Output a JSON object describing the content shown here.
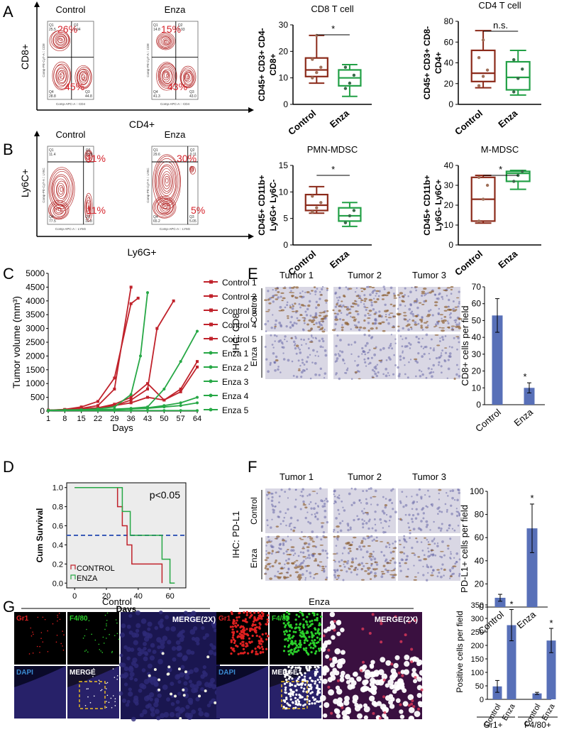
{
  "panel_labels": [
    "A",
    "B",
    "C",
    "D",
    "E",
    "F",
    "G"
  ],
  "panelA": {
    "flow": [
      {
        "title": "Control",
        "q1": "Q1",
        "q1v": "25.5",
        "q2": "Q2",
        "q2v": "0.94",
        "q3": "Q3",
        "q3v": "44.8",
        "q4": "Q4",
        "q4v": "28.8",
        "top_pct": "26%",
        "bot_pct": "45%",
        "xaxis": "Comp-APC-A :: CD4",
        "yaxis": "Comp-PE-Cy7-A :: CD8"
      },
      {
        "title": "Enza",
        "q1": "Q1",
        "q1v": "14.8",
        "q2": "Q2",
        "q2v": "0.93",
        "q3": "Q3",
        "q3v": "43.0",
        "q4": "Q4",
        "q4v": "41.3",
        "top_pct": "15%",
        "bot_pct": "43%",
        "xaxis": "Comp-APC-A :: CD4",
        "yaxis": "Comp-PE-Cy7-A :: CD8"
      }
    ],
    "xlabel": "CD4+",
    "ylabel": "CD8+"
  },
  "panelB": {
    "flow": [
      {
        "title": "Control",
        "q1": "Q1",
        "q1v": "11.4",
        "q2": "Q2",
        "q2v": "0.29",
        "q3": "Q3",
        "q3v": "10.8",
        "q4": "Q4",
        "q4v": "77.5",
        "top_pct": "11%",
        "bot_pct": "11%",
        "xaxis": "Comp-APC-A :: LY6G",
        "yaxis": "Comp-PE-Cy7-A :: LY6C"
      },
      {
        "title": "Enza",
        "q1": "Q1",
        "q1v": "29.6",
        "q2": "Q2",
        "q2v": "0.11",
        "q3": "Q3",
        "q3v": "5.05",
        "q4": "Q4",
        "q4v": "65.2",
        "top_pct": "30%",
        "bot_pct": "5%",
        "xaxis": "Comp-APC-A :: LY6G",
        "yaxis": "Comp-PE-Cy7-A :: LY6C"
      }
    ],
    "xlabel": "Ly6G+",
    "ylabel": "Ly6C+"
  },
  "chart_data": [
    {
      "type": "box",
      "title": "CD8 T cell",
      "ylabel_lines": [
        "CD45+ CD3+ CD4-",
        "CD8+"
      ],
      "ylim": [
        0,
        30
      ],
      "yticks": [
        "0",
        "10",
        "20",
        "30"
      ],
      "categories": [
        "Control",
        "Enza"
      ],
      "boxes": [
        {
          "min": 8,
          "q1": 10.5,
          "median": 13,
          "q3": 17.5,
          "max": 26,
          "points": [
            10,
            12,
            14,
            17,
            26
          ]
        },
        {
          "min": 3,
          "q1": 7,
          "median": 10,
          "q3": 13,
          "max": 15,
          "points": [
            6,
            8,
            11,
            14
          ]
        }
      ],
      "annotation": "*"
    },
    {
      "type": "box",
      "title": "CD4 T cell",
      "ylabel_lines": [
        "CD45+ CD3+ CD8-",
        "CD4+"
      ],
      "ylim": [
        0,
        80
      ],
      "yticks": [
        "0",
        "20",
        "40",
        "60",
        "80"
      ],
      "categories": [
        "Control",
        "Enza"
      ],
      "boxes": [
        {
          "min": 16,
          "q1": 22,
          "median": 30,
          "q3": 52,
          "max": 71,
          "points": [
            18,
            27,
            33,
            45,
            62
          ]
        },
        {
          "min": 9,
          "q1": 14,
          "median": 26,
          "q3": 41,
          "max": 52,
          "points": [
            12,
            25,
            34,
            43
          ]
        }
      ],
      "annotation": "n.s."
    },
    {
      "type": "box",
      "title": "PMN-MDSC",
      "ylabel_lines": [
        "CD45+ CD11b+",
        "Ly6G+ Ly6C-"
      ],
      "ylim": [
        0,
        15
      ],
      "yticks": [
        "0",
        "5",
        "10",
        "15"
      ],
      "categories": [
        "Control",
        "Enza"
      ],
      "boxes": [
        {
          "min": 6,
          "q1": 6.5,
          "median": 7.5,
          "q3": 9.5,
          "max": 11,
          "points": [
            6.2,
            7,
            8,
            9.2
          ]
        },
        {
          "min": 3.5,
          "q1": 4.5,
          "median": 5.5,
          "q3": 7,
          "max": 8,
          "points": [
            4.2,
            5.5,
            6.5
          ]
        }
      ],
      "annotation": "*"
    },
    {
      "type": "box",
      "title": "M-MDSC",
      "ylabel_lines": [
        "CD45+ CD11b+",
        "Ly6G- Ly6C+"
      ],
      "ylim": [
        0,
        40
      ],
      "yticks": [
        "0",
        "10",
        "20",
        "30",
        "40"
      ],
      "categories": [
        "Control",
        "Enza"
      ],
      "boxes": [
        {
          "min": 11,
          "q1": 12,
          "median": 23,
          "q3": 34,
          "max": 35,
          "points": [
            12,
            23,
            30,
            34
          ]
        },
        {
          "min": 28,
          "q1": 32,
          "median": 36,
          "q3": 37,
          "max": 37.5,
          "points": [
            32,
            35,
            37
          ]
        }
      ],
      "annotation": "*"
    },
    {
      "type": "line",
      "ylabel": "Tumor volume (mm³)",
      "xlabel": "Days",
      "xticks": [
        "1",
        "8",
        "15",
        "22",
        "29",
        "36",
        "43",
        "50",
        "57",
        "64"
      ],
      "yticks": [
        "0",
        "500",
        "1000",
        "1500",
        "2000",
        "2500",
        "3000",
        "3500",
        "4000",
        "4500",
        "5000"
      ],
      "ylim": [
        0,
        5000
      ],
      "xlim": [
        1,
        64
      ],
      "series": [
        {
          "name": "Control 1",
          "group": "control",
          "x": [
            1,
            8,
            15,
            22,
            29,
            36
          ],
          "y": [
            30,
            50,
            100,
            200,
            800,
            4500
          ]
        },
        {
          "name": "Control 2",
          "group": "control",
          "x": [
            1,
            8,
            15,
            22,
            29,
            36,
            39
          ],
          "y": [
            30,
            60,
            150,
            350,
            1200,
            3900,
            4100
          ]
        },
        {
          "name": "Control 3",
          "group": "control",
          "x": [
            1,
            8,
            15,
            22,
            29,
            36,
            43,
            50,
            57,
            64
          ],
          "y": [
            30,
            40,
            60,
            100,
            200,
            300,
            500,
            400,
            700,
            1600
          ]
        },
        {
          "name": "Control 4",
          "group": "control",
          "x": [
            1,
            8,
            15,
            22,
            29,
            36,
            43,
            47,
            54
          ],
          "y": [
            30,
            40,
            60,
            100,
            200,
            400,
            800,
            3000,
            4000
          ]
        },
        {
          "name": "Control 5",
          "group": "control",
          "x": [
            1,
            8,
            15,
            22,
            29,
            36,
            43,
            50,
            57,
            64
          ],
          "y": [
            30,
            50,
            80,
            120,
            250,
            500,
            1000,
            400,
            800,
            1800
          ]
        },
        {
          "name": "Enza 1",
          "group": "enza",
          "x": [
            1,
            8,
            15,
            22,
            29,
            36,
            40,
            43
          ],
          "y": [
            30,
            40,
            50,
            80,
            150,
            600,
            2000,
            4300
          ]
        },
        {
          "name": "Enza 2",
          "group": "enza",
          "x": [
            1,
            8,
            15,
            22,
            29,
            36,
            43,
            50,
            57,
            64
          ],
          "y": [
            20,
            30,
            40,
            50,
            60,
            80,
            100,
            150,
            200,
            300
          ]
        },
        {
          "name": "Enza 3",
          "group": "enza",
          "x": [
            1,
            8,
            15,
            22,
            29,
            36,
            43,
            50,
            57,
            64
          ],
          "y": [
            20,
            30,
            40,
            50,
            70,
            100,
            150,
            800,
            1800,
            2900
          ]
        },
        {
          "name": "Enza 4",
          "group": "enza",
          "x": [
            1,
            8,
            15,
            22,
            29,
            36,
            43,
            50,
            57,
            64
          ],
          "y": [
            20,
            30,
            40,
            50,
            60,
            80,
            120,
            200,
            300,
            500
          ]
        },
        {
          "name": "Enza 5",
          "group": "enza",
          "x": [
            1,
            8,
            15,
            22,
            29,
            36,
            43,
            50,
            57,
            64
          ],
          "y": [
            20,
            20,
            20,
            20,
            20,
            20,
            20,
            20,
            20,
            20
          ]
        }
      ]
    },
    {
      "type": "line",
      "subtype": "kaplan-meier",
      "ylabel": "Cum Survival",
      "xlabel": "Days",
      "annotation": "p<0.05",
      "xticks": [
        "0",
        "20",
        "40",
        "60"
      ],
      "yticks": [
        "0.0",
        "0.2",
        "0.4",
        "0.6",
        "0.8",
        "1.0"
      ],
      "xlim": [
        -5,
        70
      ],
      "ylim": [
        -0.05,
        1.05
      ],
      "series": [
        {
          "name": "CONTROL",
          "x": [
            0,
            27,
            27,
            30,
            30,
            33,
            33,
            36,
            36,
            55,
            55
          ],
          "y": [
            1,
            1,
            0.8,
            0.8,
            0.6,
            0.6,
            0.4,
            0.4,
            0.2,
            0.2,
            0
          ]
        },
        {
          "name": "ENZA",
          "x": [
            0,
            30,
            30,
            35,
            35,
            55,
            55,
            60,
            60,
            63
          ],
          "y": [
            1,
            1,
            0.75,
            0.75,
            0.5,
            0.5,
            0.25,
            0.25,
            0,
            0
          ]
        }
      ],
      "reference_line": 0.5
    },
    {
      "type": "bar",
      "ylabel": "CD8+ cells per field",
      "categories": [
        "Control",
        "Enza"
      ],
      "values": [
        53,
        10
      ],
      "errors": [
        10,
        3
      ],
      "ylim": [
        0,
        70
      ],
      "yticks": [
        "0",
        "10",
        "20",
        "30",
        "40",
        "50",
        "60",
        "70"
      ],
      "annotation": "*"
    },
    {
      "type": "bar",
      "ylabel": "PD-L1+ cells per field",
      "categories": [
        "Control",
        "Enza"
      ],
      "values": [
        8,
        68
      ],
      "errors": [
        3,
        21
      ],
      "ylim": [
        0,
        100
      ],
      "yticks": [
        "0",
        "20",
        "40",
        "60",
        "80",
        "100"
      ],
      "annotation": "*"
    },
    {
      "type": "bar",
      "ylabel": "Positive cells per field",
      "categories": [
        "Control",
        "Enza",
        "Control",
        "Enza"
      ],
      "groups": [
        "Gr1+",
        "F4/80+"
      ],
      "values": [
        48,
        275,
        22,
        218
      ],
      "errors": [
        22,
        58,
        4,
        45
      ],
      "ylim": [
        0,
        350
      ],
      "yticks": [
        "0",
        "50",
        "100",
        "150",
        "200",
        "250",
        "300",
        "350"
      ],
      "annotation": "*"
    }
  ],
  "panelE": {
    "tumors": [
      "Tumor 1",
      "Tumor 2",
      "Tumor 3"
    ],
    "rows": [
      "Control",
      "Enza"
    ],
    "side_label": "IHC: CD8"
  },
  "panelF": {
    "tumors": [
      "Tumor 1",
      "Tumor 2",
      "Tumor 3"
    ],
    "rows": [
      "Control",
      "Enza"
    ],
    "side_label": "IHC: PD-L1"
  },
  "panelG": {
    "groups": [
      "Control",
      "Enza"
    ],
    "tiles": {
      "gr1": "Gr1",
      "f480": "F4/80",
      "dapi": "DAPI",
      "merge": "MERGE",
      "merge2x": "MERGE(2X)"
    }
  },
  "colors": {
    "control": "#c0222b",
    "enza": "#27a846",
    "box_control": "#8b2a1a",
    "box_enza": "#22a046",
    "bar": "#5870b8",
    "contour": "#b52a2a"
  }
}
